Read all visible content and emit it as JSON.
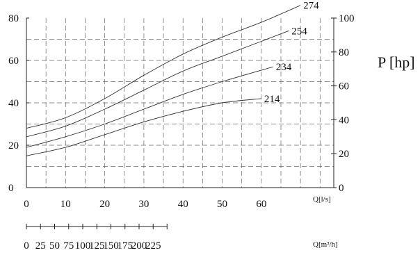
{
  "chart_data": {
    "type": "line",
    "left_axis": {
      "ticks": [
        0,
        20,
        40,
        60,
        80
      ],
      "ylim": [
        0,
        80
      ]
    },
    "right_axis": {
      "ticks": [
        0,
        20,
        40,
        60,
        80,
        100
      ],
      "ylim": [
        0,
        100
      ],
      "title": "P [hp]"
    },
    "x_axis_ls": {
      "ticks": [
        0,
        10,
        20,
        30,
        40,
        50,
        60
      ],
      "xlim": [
        0,
        78.5
      ],
      "label": "Q[l/s]"
    },
    "x_axis_m3h": {
      "ticks": [
        0,
        25,
        50,
        75,
        100,
        125,
        150,
        175,
        200,
        225
      ],
      "label": "Q[m³/h]"
    },
    "grid": true,
    "series": [
      {
        "name": "274",
        "x": [
          0,
          10,
          20,
          30,
          40,
          50,
          60,
          70
        ],
        "y": [
          28,
          33,
          42,
          53,
          63,
          71,
          78,
          86
        ]
      },
      {
        "name": "254",
        "x": [
          0,
          10,
          20,
          30,
          40,
          50,
          60,
          67
        ],
        "y": [
          24,
          29,
          37,
          46,
          55,
          62,
          69,
          74
        ]
      },
      {
        "name": "234",
        "x": [
          0,
          10,
          20,
          30,
          40,
          50,
          63
        ],
        "y": [
          19,
          24,
          30,
          37,
          44,
          50,
          57
        ]
      },
      {
        "name": "214",
        "x": [
          0,
          10,
          20,
          30,
          40,
          50,
          60
        ],
        "y": [
          15,
          19,
          25,
          31,
          36,
          40,
          42
        ]
      }
    ]
  }
}
